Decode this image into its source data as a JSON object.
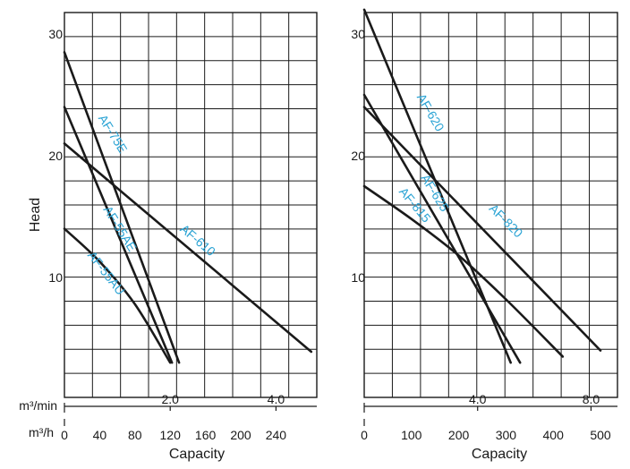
{
  "chart_data": [
    {
      "type": "line",
      "ylabel": "Head",
      "xlabel": "Capacity",
      "unit_min": "m³/min",
      "unit_h": "m³/h",
      "ylim": [
        0,
        32
      ],
      "xlim_m3h": [
        0,
        285
      ],
      "y_ticks": [
        "10",
        "20",
        "30"
      ],
      "x_ticks_m3h": [
        "0",
        "40",
        "80",
        "120",
        "160",
        "200",
        "240"
      ],
      "x_ticks_m3min": [
        "2.0",
        "4.0"
      ],
      "series": [
        {
          "name": "AF-75E",
          "x": [
            0,
            130
          ],
          "y": [
            28.5,
            3.0
          ]
        },
        {
          "name": "AF-55AE",
          "x": [
            0,
            122
          ],
          "y": [
            24.0,
            3.0
          ]
        },
        {
          "name": "AF-55AU",
          "x": [
            0,
            40,
            80,
            120
          ],
          "y": [
            14.0,
            11.3,
            7.8,
            3.0
          ]
        },
        {
          "name": "AF-610",
          "x": [
            0,
            280
          ],
          "y": [
            21.0,
            3.9
          ]
        }
      ]
    },
    {
      "type": "line",
      "ylabel": "",
      "xlabel": "Capacity",
      "unit_min": "",
      "unit_h": "",
      "ylim": [
        0,
        32
      ],
      "xlim_m3h": [
        0,
        530
      ],
      "y_ticks": [
        "10",
        "20",
        "30"
      ],
      "x_ticks_m3h": [
        "0",
        "100",
        "200",
        "300",
        "400",
        "500"
      ],
      "x_ticks_m3min": [
        "4.0",
        "8.0"
      ],
      "series": [
        {
          "name": "AF-620",
          "x": [
            0,
            310
          ],
          "y": [
            32.0,
            3.0
          ]
        },
        {
          "name": "AF-625",
          "x": [
            0,
            330
          ],
          "y": [
            25.0,
            3.0
          ]
        },
        {
          "name": "AF-815",
          "x": [
            0,
            100,
            200,
            300,
            420
          ],
          "y": [
            17.5,
            14.8,
            11.8,
            8.2,
            3.5
          ]
        },
        {
          "name": "AF-820",
          "x": [
            0,
            500
          ],
          "y": [
            24.0,
            4.0
          ]
        }
      ]
    }
  ]
}
